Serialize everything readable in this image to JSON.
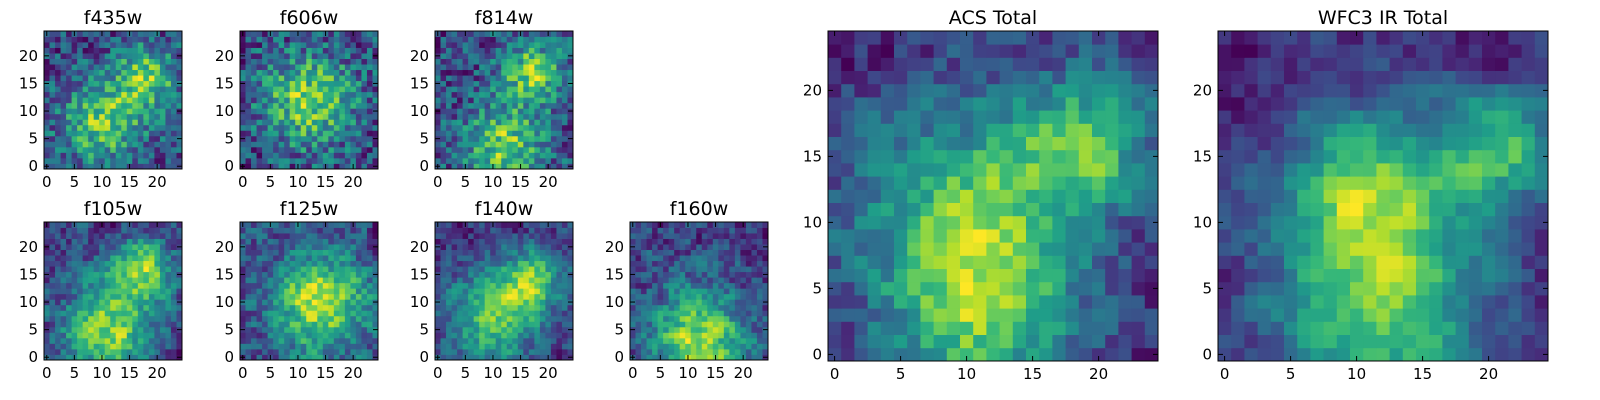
{
  "chart_data": [
    {
      "type": "heatmap",
      "title": "f435w",
      "grid": false,
      "nx": 25,
      "ny": 25,
      "xlim": [
        -0.5,
        24.5
      ],
      "ylim": [
        -0.5,
        24.5
      ],
      "x_ticks": [
        0,
        5,
        10,
        15,
        20
      ],
      "y_ticks": [
        0,
        5,
        10,
        15,
        20
      ],
      "y_origin": "bottom",
      "colormap": "viridis",
      "seed": 11,
      "smoothing": 0,
      "hot_spots": [
        [
          10,
          8,
          5
        ],
        [
          18,
          16,
          4
        ]
      ]
    },
    {
      "type": "heatmap",
      "title": "f606w",
      "grid": false,
      "nx": 25,
      "ny": 25,
      "xlim": [
        -0.5,
        24.5
      ],
      "ylim": [
        -0.5,
        24.5
      ],
      "x_ticks": [
        0,
        5,
        10,
        15,
        20
      ],
      "y_ticks": [
        0,
        5,
        10,
        15,
        20
      ],
      "y_origin": "bottom",
      "colormap": "viridis",
      "seed": 23,
      "smoothing": 0,
      "hot_spots": [
        [
          12,
          12,
          6
        ]
      ]
    },
    {
      "type": "heatmap",
      "title": "f814w",
      "grid": false,
      "nx": 25,
      "ny": 25,
      "xlim": [
        -0.5,
        24.5
      ],
      "ylim": [
        -0.5,
        24.5
      ],
      "x_ticks": [
        0,
        5,
        10,
        15,
        20
      ],
      "y_ticks": [
        0,
        5,
        10,
        15,
        20
      ],
      "y_origin": "bottom",
      "colormap": "viridis",
      "seed": 37,
      "smoothing": 0,
      "hot_spots": [
        [
          12,
          4,
          5
        ],
        [
          17,
          17,
          4
        ]
      ]
    },
    {
      "type": "heatmap",
      "title": "f105w",
      "grid": false,
      "nx": 25,
      "ny": 25,
      "xlim": [
        -0.5,
        24.5
      ],
      "ylim": [
        -0.5,
        24.5
      ],
      "x_ticks": [
        0,
        5,
        10,
        15,
        20
      ],
      "y_ticks": [
        0,
        5,
        10,
        15,
        20
      ],
      "y_origin": "bottom",
      "colormap": "viridis",
      "seed": 41,
      "smoothing": 1,
      "hot_spots": [
        [
          11,
          5,
          6
        ],
        [
          17,
          16,
          4
        ]
      ]
    },
    {
      "type": "heatmap",
      "title": "f125w",
      "grid": false,
      "nx": 25,
      "ny": 25,
      "xlim": [
        -0.5,
        24.5
      ],
      "ylim": [
        -0.5,
        24.5
      ],
      "x_ticks": [
        0,
        5,
        10,
        15,
        20
      ],
      "y_ticks": [
        0,
        5,
        10,
        15,
        20
      ],
      "y_origin": "bottom",
      "colormap": "viridis",
      "seed": 53,
      "smoothing": 1,
      "hot_spots": [
        [
          14,
          10,
          6
        ]
      ]
    },
    {
      "type": "heatmap",
      "title": "f140w",
      "grid": false,
      "nx": 25,
      "ny": 25,
      "xlim": [
        -0.5,
        24.5
      ],
      "ylim": [
        -0.5,
        24.5
      ],
      "x_ticks": [
        0,
        5,
        10,
        15,
        20
      ],
      "y_ticks": [
        0,
        5,
        10,
        15,
        20
      ],
      "y_origin": "bottom",
      "colormap": "viridis",
      "seed": 67,
      "smoothing": 1,
      "hot_spots": [
        [
          10,
          7,
          6
        ],
        [
          17,
          14,
          4
        ]
      ]
    },
    {
      "type": "heatmap",
      "title": "f160w",
      "grid": false,
      "nx": 25,
      "ny": 25,
      "xlim": [
        -0.5,
        24.5
      ],
      "ylim": [
        -0.5,
        24.5
      ],
      "x_ticks": [
        0,
        5,
        10,
        15,
        20
      ],
      "y_ticks": [
        0,
        5,
        10,
        15,
        20
      ],
      "y_origin": "bottom",
      "colormap": "viridis",
      "seed": 71,
      "smoothing": 1,
      "hot_spots": [
        [
          12,
          3,
          6
        ]
      ]
    },
    {
      "type": "heatmap",
      "title": "ACS Total",
      "grid": false,
      "nx": 25,
      "ny": 25,
      "xlim": [
        -0.5,
        24.5
      ],
      "ylim": [
        -0.5,
        24.5
      ],
      "x_ticks": [
        0,
        5,
        10,
        15,
        20
      ],
      "y_ticks": [
        0,
        5,
        10,
        15,
        20
      ],
      "y_origin": "bottom",
      "colormap": "viridis",
      "seed": 83,
      "smoothing": 1,
      "hot_spots": [
        [
          19,
          16,
          4
        ],
        [
          11,
          3,
          5
        ],
        [
          10,
          11,
          6
        ]
      ]
    },
    {
      "type": "heatmap",
      "title": "WFC3 IR Total",
      "grid": false,
      "nx": 25,
      "ny": 25,
      "xlim": [
        -0.5,
        24.5
      ],
      "ylim": [
        -0.5,
        24.5
      ],
      "x_ticks": [
        0,
        5,
        10,
        15,
        20
      ],
      "y_ticks": [
        0,
        5,
        10,
        15,
        20
      ],
      "y_origin": "bottom",
      "colormap": "viridis",
      "seed": 97,
      "smoothing": 2,
      "hot_spots": [
        [
          12,
          3,
          6
        ],
        [
          11,
          13,
          5
        ],
        [
          21,
          16,
          3
        ]
      ]
    }
  ]
}
